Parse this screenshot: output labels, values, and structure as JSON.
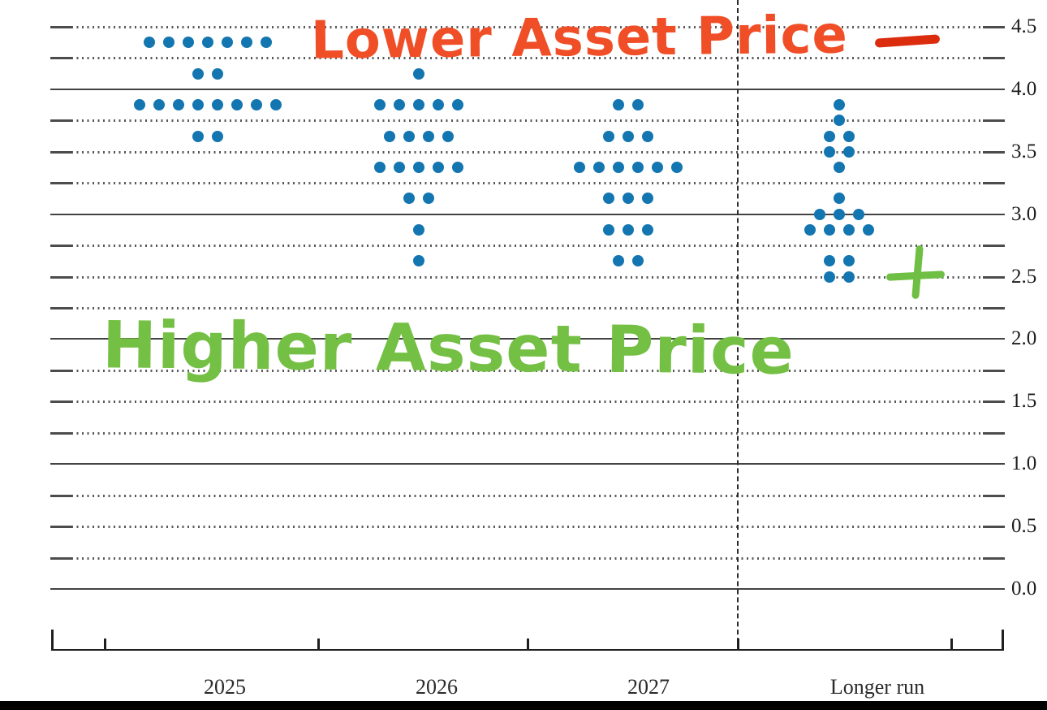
{
  "chart_data": {
    "type": "scatter",
    "subtype": "fomc-dot-plot",
    "title": "",
    "x_axis": {
      "categories": [
        "2025",
        "2026",
        "2027",
        "Longer run"
      ],
      "separator_before": "Longer run"
    },
    "y_axis": {
      "min": 0.0,
      "max": 4.5,
      "grid_step": 0.25,
      "label_step": 0.5,
      "tick_labels": [
        "4.5",
        "4.0",
        "3.5",
        "3.0",
        "2.5",
        "2.0",
        "1.5",
        "1.0",
        "0.5",
        "0.0"
      ],
      "labels_position": "right",
      "solid_lines_at": [
        4.0,
        3.0,
        2.0,
        1.0,
        0.0
      ]
    },
    "series": [
      {
        "category": "2025",
        "dots": [
          {
            "rate": 4.375,
            "count": 7
          },
          {
            "rate": 4.125,
            "count": 2
          },
          {
            "rate": 3.875,
            "count": 8
          },
          {
            "rate": 3.625,
            "count": 2
          }
        ]
      },
      {
        "category": "2026",
        "dots": [
          {
            "rate": 4.125,
            "count": 1
          },
          {
            "rate": 3.875,
            "count": 5
          },
          {
            "rate": 3.625,
            "count": 4
          },
          {
            "rate": 3.375,
            "count": 5
          },
          {
            "rate": 3.125,
            "count": 2
          },
          {
            "rate": 2.875,
            "count": 1
          },
          {
            "rate": 2.625,
            "count": 1
          }
        ]
      },
      {
        "category": "2027",
        "dots": [
          {
            "rate": 3.875,
            "count": 2
          },
          {
            "rate": 3.625,
            "count": 3
          },
          {
            "rate": 3.375,
            "count": 6
          },
          {
            "rate": 3.125,
            "count": 3
          },
          {
            "rate": 2.875,
            "count": 3
          },
          {
            "rate": 2.625,
            "count": 2
          }
        ]
      },
      {
        "category": "Longer run",
        "dots": [
          {
            "rate": 3.875,
            "count": 1
          },
          {
            "rate": 3.75,
            "count": 1
          },
          {
            "rate": 3.625,
            "count": 2
          },
          {
            "rate": 3.5,
            "count": 2
          },
          {
            "rate": 3.375,
            "count": 1
          },
          {
            "rate": 3.125,
            "count": 1
          },
          {
            "rate": 3.0,
            "count": 3
          },
          {
            "rate": 2.875,
            "count": 4
          },
          {
            "rate": 2.625,
            "count": 2
          },
          {
            "rate": 2.5,
            "count": 2
          }
        ]
      }
    ],
    "dot_color": "#1476b0",
    "annotations": [
      {
        "id": "lower-asset-price",
        "text": "Lower Asset Price",
        "color": "#f04e27",
        "style": "handwritten-marker"
      },
      {
        "id": "minus-sign",
        "symbol": "−",
        "color": "#dc2c0e",
        "style": "handwritten-marker"
      },
      {
        "id": "higher-asset-price",
        "text": "Higher Asset Price",
        "color": "#74c044",
        "style": "handwritten-marker"
      },
      {
        "id": "plus-sign",
        "symbol": "+",
        "color": "#6fbf44",
        "style": "handwritten-marker"
      }
    ]
  }
}
